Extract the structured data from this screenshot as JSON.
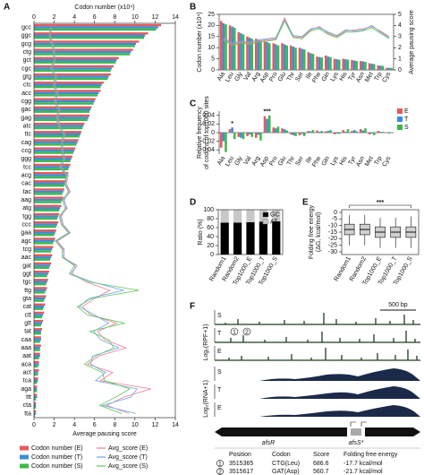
{
  "chart_data": [
    {
      "type": "bar",
      "orientation": "horizontal",
      "panel": "A",
      "xlabel": "Codon number (x10⁴)",
      "x2label": "Average pausing score",
      "xlim": [
        0,
        14
      ],
      "xticks": [
        0,
        2,
        4,
        6,
        8,
        10,
        12,
        14
      ],
      "x2lim": [
        0,
        14
      ],
      "x2ticks": [
        0,
        2,
        4,
        6,
        8,
        10,
        12,
        14
      ],
      "categories": [
        "gcc",
        "ggc",
        "gcg",
        "ctg",
        "gct",
        "cgc",
        "gtg",
        "ctc",
        "acc",
        "cgg",
        "gac",
        "gag",
        "atc",
        "ttc",
        "cag",
        "ccg",
        "ggg",
        "tcc",
        "acg",
        "cac",
        "tac",
        "aag",
        "atg",
        "tgg",
        "ccc",
        "gaa",
        "agc",
        "tcg",
        "aac",
        "gat",
        "ggt",
        "tgc",
        "ttg",
        "gta",
        "cat",
        "ctt",
        "gtt",
        "tat",
        "caa",
        "aaa",
        "aat",
        "aca",
        "act",
        "tca",
        "aga",
        "ttt",
        "cta",
        "tta"
      ],
      "series": [
        {
          "name": "Codon number (E)",
          "kind": "bar",
          "color": "#e8595b",
          "values": [
            12.6,
            11.3,
            10.4,
            9.8,
            8.4,
            7.9,
            7.6,
            6.9,
            6.6,
            6.1,
            5.7,
            5.5,
            5.0,
            4.7,
            4.4,
            4.1,
            3.8,
            3.6,
            3.4,
            3.2,
            3.0,
            2.9,
            2.7,
            2.5,
            2.4,
            2.2,
            2.1,
            1.9,
            1.8,
            1.7,
            1.5,
            1.4,
            1.3,
            1.2,
            1.1,
            1.0,
            0.9,
            0.8,
            0.7,
            0.7,
            0.6,
            0.5,
            0.5,
            0.4,
            0.3,
            0.3,
            0.2,
            0.2
          ]
        },
        {
          "name": "Codon number (T)",
          "kind": "bar",
          "color": "#3b8fd9",
          "values": [
            12.3,
            11.0,
            10.1,
            9.6,
            8.2,
            7.7,
            7.4,
            6.7,
            6.4,
            6.0,
            5.6,
            5.4,
            4.9,
            4.6,
            4.3,
            4.0,
            3.7,
            3.5,
            3.3,
            3.1,
            2.9,
            2.8,
            2.6,
            2.4,
            2.3,
            2.1,
            2.0,
            1.8,
            1.7,
            1.6,
            1.4,
            1.3,
            1.2,
            1.1,
            1.0,
            0.9,
            0.8,
            0.7,
            0.7,
            0.6,
            0.6,
            0.5,
            0.4,
            0.4,
            0.3,
            0.3,
            0.2,
            0.2
          ]
        },
        {
          "name": "Codon number (S)",
          "kind": "bar",
          "color": "#3cb94a",
          "values": [
            12.1,
            10.9,
            10.0,
            9.5,
            8.1,
            7.6,
            7.3,
            6.6,
            6.3,
            5.9,
            5.5,
            5.3,
            4.8,
            4.5,
            4.2,
            3.9,
            3.6,
            3.4,
            3.2,
            3.0,
            2.8,
            2.7,
            2.5,
            2.3,
            2.2,
            2.0,
            1.9,
            1.7,
            1.6,
            1.5,
            1.3,
            1.2,
            1.1,
            1.0,
            0.9,
            0.8,
            0.7,
            0.7,
            0.6,
            0.6,
            0.5,
            0.4,
            0.4,
            0.3,
            0.3,
            0.2,
            0.2,
            0.1
          ]
        },
        {
          "name": "Avg_score (E)",
          "kind": "line",
          "axis": "x2",
          "color": "#f07c95",
          "values": [
            1.8,
            1.6,
            1.9,
            2.0,
            2.1,
            1.8,
            2.2,
            2.0,
            2.4,
            2.1,
            2.6,
            2.3,
            2.5,
            3.1,
            2.8,
            2.9,
            3.0,
            2.7,
            3.4,
            3.2,
            3.6,
            2.9,
            3.3,
            2.6,
            2.8,
            3.5,
            2.2,
            2.9,
            3.0,
            4.1,
            3.8,
            5.2,
            7.5,
            6.0,
            4.8,
            5.6,
            8.2,
            6.3,
            7.0,
            9.1,
            6.4,
            5.3,
            7.8,
            6.6,
            11.6,
            8.9,
            7.2,
            9.4
          ]
        },
        {
          "name": "Avg_score (T)",
          "kind": "line",
          "axis": "x2",
          "color": "#6fa6e3",
          "values": [
            1.7,
            1.5,
            1.8,
            2.1,
            2.0,
            1.7,
            2.3,
            2.1,
            2.3,
            2.2,
            2.5,
            2.4,
            2.6,
            3.0,
            2.9,
            2.8,
            3.1,
            2.6,
            3.3,
            3.1,
            3.5,
            3.0,
            3.2,
            2.7,
            2.9,
            3.6,
            2.3,
            3.0,
            2.9,
            4.3,
            3.6,
            5.8,
            8.9,
            5.4,
            4.5,
            6.0,
            7.4,
            5.9,
            6.6,
            8.4,
            5.8,
            5.6,
            7.1,
            6.1,
            10.2,
            9.6,
            6.8,
            10.1
          ]
        },
        {
          "name": "Avg_score (S)",
          "kind": "line",
          "axis": "x2",
          "color": "#62c45f",
          "values": [
            1.6,
            1.5,
            1.7,
            1.9,
            2.0,
            1.6,
            2.1,
            1.9,
            2.2,
            2.0,
            2.4,
            2.2,
            2.4,
            2.9,
            2.7,
            2.7,
            2.9,
            2.5,
            3.2,
            3.0,
            3.4,
            2.8,
            3.1,
            2.5,
            2.7,
            3.4,
            2.1,
            2.8,
            2.8,
            4.0,
            3.5,
            5.5,
            10.4,
            5.7,
            4.3,
            5.3,
            9.0,
            5.5,
            7.4,
            7.9,
            6.1,
            5.0,
            6.8,
            7.0,
            9.5,
            8.1,
            6.5,
            8.7
          ]
        }
      ],
      "legend": "bottom"
    },
    {
      "type": "bar",
      "panel": "B",
      "frame": true,
      "ylabel": "Codon number (x10⁴)",
      "y2label": "Average pausing score",
      "ylim": [
        0,
        25
      ],
      "yticks": [
        0,
        5,
        10,
        15,
        20,
        25
      ],
      "y2lim": [
        0,
        5
      ],
      "y2ticks": [
        0,
        1,
        2,
        3,
        4,
        5
      ],
      "categories": [
        "Ala",
        "Leu",
        "Gly",
        "Val",
        "Arg",
        "Asp",
        "Pro",
        "Glu",
        "Thr",
        "Ser",
        "Ile",
        "Phe",
        "Gln",
        "Lys",
        "His",
        "Tyr",
        "Asn",
        "Met",
        "Trp",
        "Cys"
      ],
      "series": [
        {
          "kind": "bar",
          "color": "#e8595b",
          "values": [
            22,
            20,
            17,
            15,
            14,
            13,
            12,
            12,
            11,
            10,
            8,
            6,
            6.5,
            5,
            5,
            4.5,
            4,
            3,
            2,
            1
          ]
        },
        {
          "kind": "bar",
          "color": "#3b8fd9",
          "values": [
            21,
            19.5,
            16.5,
            14.5,
            13.5,
            12.5,
            11.5,
            11.5,
            10.5,
            9.5,
            7.5,
            5.8,
            6,
            4.8,
            4.8,
            4.2,
            3.8,
            2.8,
            1.9,
            0.9
          ]
        },
        {
          "kind": "bar",
          "color": "#3cb94a",
          "values": [
            20.5,
            19,
            16,
            14,
            13,
            12,
            11,
            11,
            10,
            9.2,
            7.2,
            5.6,
            5.8,
            4.6,
            4.6,
            4,
            3.6,
            2.6,
            1.8,
            0.9
          ]
        },
        {
          "kind": "line",
          "axis": "y2",
          "color": "#f07c95",
          "values": [
            2.8,
            2.3,
            2.5,
            2.4,
            2.6,
            2.7,
            2.8,
            4.7,
            3.0,
            2.9,
            3.6,
            3.9,
            3.3,
            3.0,
            3.5,
            3.6,
            3.7,
            3.9,
            3.5,
            3.0
          ]
        },
        {
          "kind": "line",
          "axis": "y2",
          "color": "#6fa6e3",
          "values": [
            2.9,
            2.4,
            2.6,
            2.5,
            2.7,
            2.8,
            2.9,
            4.5,
            3.1,
            3.0,
            3.7,
            3.8,
            3.4,
            3.1,
            3.6,
            3.5,
            3.6,
            4.0,
            3.4,
            2.9
          ]
        },
        {
          "kind": "line",
          "axis": "y2",
          "color": "#62c45f",
          "values": [
            2.7,
            2.2,
            2.4,
            2.3,
            2.5,
            2.6,
            2.7,
            4.4,
            2.9,
            2.8,
            3.5,
            3.7,
            3.2,
            2.9,
            3.4,
            3.4,
            3.5,
            3.8,
            3.3,
            2.8
          ]
        }
      ]
    },
    {
      "type": "bar",
      "panel": "C",
      "ylabel": [
        "Relative frequency",
        "of codons of top1000 sites"
      ],
      "ylim": [
        -0.05,
        0.05
      ],
      "yticks": [
        -0.04,
        -0.02,
        0,
        0.02,
        0.04
      ],
      "categories": [
        "Ala",
        "Leu",
        "Gly",
        "Val",
        "Arg",
        "Asp",
        "Pro",
        "Glu",
        "Thr",
        "Ser",
        "Ile",
        "Phe",
        "Gln",
        "Lys",
        "His",
        "Tyr",
        "Asn",
        "Met",
        "Trp",
        "Cys"
      ],
      "series": [
        {
          "name": "E",
          "color": "#e8595b",
          "values": [
            -0.035,
            0.008,
            -0.01,
            -0.008,
            -0.012,
            0.038,
            0.012,
            0.01,
            -0.004,
            -0.006,
            0.004,
            0.005,
            0.003,
            -0.004,
            0.006,
            0.004,
            0.008,
            -0.004,
            0.004,
            -0.001
          ]
        },
        {
          "name": "T",
          "color": "#3b8fd9",
          "values": [
            -0.02,
            0.012,
            -0.012,
            -0.004,
            -0.005,
            0.032,
            0.01,
            0.008,
            -0.006,
            -0.003,
            0.003,
            0.002,
            0.004,
            -0.002,
            0.002,
            0.006,
            0.005,
            -0.002,
            0.002,
            -0.002
          ]
        },
        {
          "name": "S",
          "color": "#3cb94a",
          "values": [
            -0.045,
            -0.015,
            -0.015,
            -0.01,
            -0.018,
            0.04,
            0.014,
            0.005,
            -0.008,
            -0.008,
            0.006,
            0.004,
            0.006,
            -0.003,
            0.008,
            0.003,
            0.01,
            -0.006,
            0.002,
            -0.001
          ]
        }
      ],
      "annotations": [
        {
          "text": "*",
          "at": "Leu"
        },
        {
          "text": "***",
          "at": "Asp"
        }
      ],
      "legend": "top-right"
    },
    {
      "type": "stacked_bar",
      "panel": "D",
      "ylabel": "Ratio (%)",
      "ylim": [
        0,
        100
      ],
      "yticks": [
        0,
        20,
        40,
        60,
        80,
        100
      ],
      "categories": [
        "Random1",
        "Random2",
        "Top1000_E",
        "Top1000_T",
        "Top1000_S"
      ],
      "series": [
        {
          "name": "GC",
          "color": "#000000",
          "values": [
            71,
            71,
            72,
            73,
            74
          ]
        },
        {
          "name": "AT",
          "color": "#c8c8c8",
          "values": [
            29,
            29,
            28,
            27,
            26
          ]
        }
      ],
      "legend": "top-right"
    },
    {
      "type": "box",
      "panel": "E",
      "ylabel": [
        "Folding free energy",
        "(ΔG, kcal/mol)"
      ],
      "ylim": [
        -32,
        2
      ],
      "yticks": [
        0,
        -5,
        -10,
        -15,
        -20,
        -25,
        -30
      ],
      "categories": [
        "Random1",
        "Random2",
        "Top1000_E",
        "Top1000_T",
        "Top1000_S"
      ],
      "boxes": [
        {
          "low": -25,
          "q1": -17,
          "median": -13,
          "q3": -9,
          "high": -2
        },
        {
          "low": -25,
          "q1": -17,
          "median": -13,
          "q3": -9,
          "high": -2
        },
        {
          "low": -27,
          "q1": -19,
          "median": -15,
          "q3": -11,
          "high": -4
        },
        {
          "low": -27,
          "q1": -19,
          "median": -15,
          "q3": -11,
          "high": -4
        },
        {
          "low": -27,
          "q1": -19,
          "median": -15,
          "q3": -11,
          "high": -3
        }
      ],
      "color": "#d0d0d0",
      "annotation": "***"
    }
  ],
  "panel_f": {
    "panel": "F",
    "tracks": [
      "S",
      "T",
      "E",
      "S",
      "T",
      "E"
    ],
    "ylabels": [
      "Log₂(RPF+1)",
      "Log₂(RNA+1)"
    ],
    "scale": "500 bp",
    "genes": [
      "afsR",
      "afsS*"
    ],
    "markers": [
      "1",
      "2"
    ],
    "table": {
      "header": [
        "Position",
        "Codon",
        "Score",
        "Folding free energy"
      ],
      "rows": [
        [
          "1",
          "3515365",
          "CTG(Leu)",
          "686.6",
          "-17.7 kcal/mol"
        ],
        [
          "2",
          "3515617",
          "GAT(Asp)",
          "560.7",
          "-21.7 kcal/mol"
        ]
      ]
    }
  }
}
